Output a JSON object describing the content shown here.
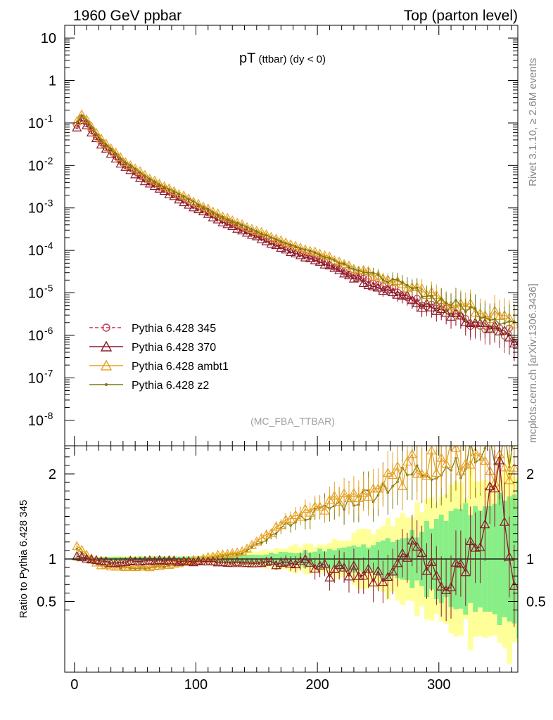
{
  "header": {
    "left": "1960 GeV ppbar",
    "right": "Top (parton level)"
  },
  "side_labels": {
    "rivet": "Rivet 3.1.10, ≥ 2.6M events",
    "mcplots": "mcplots.cern.ch [arXiv:1306.3436]"
  },
  "chart_data": {
    "type": "line",
    "title_main": "pT",
    "title_sub": " (ttbar) (dy < 0)",
    "watermark": "(MC_FBA_TTBAR)",
    "ratio_ylabel": "Ratio to Pythia 6.428 345",
    "xlim": [
      -8,
      365
    ],
    "ylim_main_log10": [
      -8.6,
      1.3
    ],
    "ylim_ratio": [
      0.35,
      2.4
    ],
    "x_ticks": [
      0,
      100,
      200,
      300
    ],
    "y_ticks_main": [
      {
        "exp": 1,
        "label": "10"
      },
      {
        "exp": 0,
        "label": "1"
      },
      {
        "exp": -1,
        "label": "-1"
      },
      {
        "exp": -2,
        "label": "-2"
      },
      {
        "exp": -3,
        "label": "-3"
      },
      {
        "exp": -4,
        "label": "-4"
      },
      {
        "exp": -5,
        "label": "-5"
      },
      {
        "exp": -6,
        "label": "-6"
      },
      {
        "exp": -7,
        "label": "-7"
      },
      {
        "exp": -8,
        "label": "-8"
      }
    ],
    "y_ticks_ratio": [
      {
        "value": 0.5,
        "label": "0.5"
      },
      {
        "value": 1,
        "label": "1"
      },
      {
        "value": 2,
        "label": "2"
      }
    ],
    "legend": [
      {
        "name": "Pythia 6.428 345",
        "color": "#c03a4f",
        "marker": "circle",
        "dash": true
      },
      {
        "name": "Pythia 6.428 370",
        "color": "#8b1a2a",
        "marker": "triangle",
        "dash": false
      },
      {
        "name": "Pythia 6.428 ambt1",
        "color": "#e8a020",
        "marker": "triangle",
        "dash": false
      },
      {
        "name": "Pythia 6.428 z2",
        "color": "#7a7a10",
        "marker": "dot",
        "dash": false
      }
    ],
    "main_curve_points": [
      {
        "x": 2,
        "log10y": -1.05
      },
      {
        "x": 6,
        "log10y": -0.88
      },
      {
        "x": 10,
        "log10y": -1.0
      },
      {
        "x": 20,
        "log10y": -1.4
      },
      {
        "x": 40,
        "log10y": -1.95
      },
      {
        "x": 60,
        "log10y": -2.35
      },
      {
        "x": 80,
        "log10y": -2.65
      },
      {
        "x": 100,
        "log10y": -2.95
      },
      {
        "x": 120,
        "log10y": -3.25
      },
      {
        "x": 140,
        "log10y": -3.5
      },
      {
        "x": 160,
        "log10y": -3.75
      },
      {
        "x": 180,
        "log10y": -4.0
      },
      {
        "x": 200,
        "log10y": -4.2
      },
      {
        "x": 220,
        "log10y": -4.45
      },
      {
        "x": 240,
        "log10y": -4.7
      },
      {
        "x": 260,
        "log10y": -4.9
      },
      {
        "x": 280,
        "log10y": -5.15
      },
      {
        "x": 300,
        "log10y": -5.4
      },
      {
        "x": 320,
        "log10y": -5.6
      },
      {
        "x": 340,
        "log10y": -5.8
      },
      {
        "x": 360,
        "log10y": -6.0
      }
    ],
    "series_offsets": {
      "Pythia 6.428 345": 0.0,
      "Pythia 6.428 370": -0.05,
      "Pythia 6.428 ambt1": 0.08,
      "Pythia 6.428 z2": 0.06
    },
    "ratio_points": {
      "Pythia 6.428 370": [
        {
          "x": 2,
          "y": 1.03
        },
        {
          "x": 30,
          "y": 0.96
        },
        {
          "x": 60,
          "y": 0.98
        },
        {
          "x": 100,
          "y": 0.97
        },
        {
          "x": 130,
          "y": 0.96
        },
        {
          "x": 160,
          "y": 0.95
        },
        {
          "x": 190,
          "y": 0.98
        },
        {
          "x": 210,
          "y": 0.85
        },
        {
          "x": 230,
          "y": 0.9
        },
        {
          "x": 250,
          "y": 0.8
        },
        {
          "x": 260,
          "y": 0.63
        },
        {
          "x": 270,
          "y": 1.2
        },
        {
          "x": 290,
          "y": 0.9
        },
        {
          "x": 310,
          "y": 0.7
        },
        {
          "x": 330,
          "y": 1.2
        },
        {
          "x": 350,
          "y": 2.0
        },
        {
          "x": 360,
          "y": 0.5
        }
      ],
      "Pythia 6.428 ambt1": [
        {
          "x": 2,
          "y": 1.16
        },
        {
          "x": 20,
          "y": 0.93
        },
        {
          "x": 50,
          "y": 0.9
        },
        {
          "x": 80,
          "y": 0.93
        },
        {
          "x": 110,
          "y": 1.02
        },
        {
          "x": 140,
          "y": 1.1
        },
        {
          "x": 160,
          "y": 1.3
        },
        {
          "x": 180,
          "y": 1.5
        },
        {
          "x": 200,
          "y": 1.6
        },
        {
          "x": 220,
          "y": 1.7
        },
        {
          "x": 240,
          "y": 1.8
        },
        {
          "x": 260,
          "y": 1.9
        },
        {
          "x": 280,
          "y": 2.1
        },
        {
          "x": 300,
          "y": 2.2
        },
        {
          "x": 330,
          "y": 2.2
        },
        {
          "x": 360,
          "y": 2.05
        }
      ],
      "Pythia 6.428 z2": [
        {
          "x": 2,
          "y": 1.12
        },
        {
          "x": 20,
          "y": 0.92
        },
        {
          "x": 50,
          "y": 0.89
        },
        {
          "x": 80,
          "y": 0.92
        },
        {
          "x": 110,
          "y": 1.0
        },
        {
          "x": 140,
          "y": 1.08
        },
        {
          "x": 160,
          "y": 1.25
        },
        {
          "x": 180,
          "y": 1.45
        },
        {
          "x": 200,
          "y": 1.55
        },
        {
          "x": 220,
          "y": 1.65
        },
        {
          "x": 240,
          "y": 1.75
        },
        {
          "x": 260,
          "y": 1.9
        },
        {
          "x": 280,
          "y": 2.0
        },
        {
          "x": 300,
          "y": 2.1
        },
        {
          "x": 330,
          "y": 2.2
        },
        {
          "x": 360,
          "y": 2.3
        }
      ]
    },
    "uncertainty_bands": {
      "yellow_halfwidth_at_x": [
        {
          "x": 0,
          "w": 0.03
        },
        {
          "x": 100,
          "w": 0.04
        },
        {
          "x": 150,
          "w": 0.1
        },
        {
          "x": 200,
          "w": 0.18
        },
        {
          "x": 250,
          "w": 0.35
        },
        {
          "x": 280,
          "w": 0.55
        },
        {
          "x": 300,
          "w": 0.7
        },
        {
          "x": 340,
          "w": 1.0
        },
        {
          "x": 365,
          "w": 1.2
        }
      ],
      "green_halfwidth_at_x": [
        {
          "x": 0,
          "w": 0.02
        },
        {
          "x": 100,
          "w": 0.03
        },
        {
          "x": 150,
          "w": 0.05
        },
        {
          "x": 200,
          "w": 0.1
        },
        {
          "x": 250,
          "w": 0.18
        },
        {
          "x": 280,
          "w": 0.3
        },
        {
          "x": 300,
          "w": 0.45
        },
        {
          "x": 340,
          "w": 0.7
        },
        {
          "x": 365,
          "w": 0.9
        }
      ]
    }
  }
}
